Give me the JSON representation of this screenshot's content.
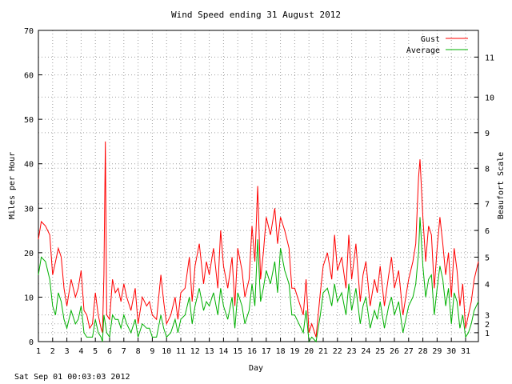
{
  "chart_data": {
    "type": "line",
    "title": "Wind Speed ending 31 August 2012",
    "xlabel": "Day",
    "ylabel": "Miles per Hour",
    "y2label": "Beaufort Scale",
    "xlim": [
      1,
      31.9
    ],
    "ylim": [
      0,
      70
    ],
    "x_ticks": [
      "1",
      "2",
      "3",
      "4",
      "5",
      "6",
      "7",
      "8",
      "9",
      "10",
      "11",
      "12",
      "13",
      "14",
      "15",
      "16",
      "17",
      "18",
      "19",
      "20",
      "21",
      "22",
      "23",
      "24",
      "25",
      "26",
      "27",
      "28",
      "29",
      "30",
      "31"
    ],
    "y_ticks": [
      "0",
      "10",
      "20",
      "30",
      "40",
      "50",
      "60",
      "70"
    ],
    "y2_ticks": [
      {
        "label": "1",
        "mph": 2
      },
      {
        "label": "2",
        "mph": 4
      },
      {
        "label": "3",
        "mph": 6
      },
      {
        "label": "4",
        "mph": 13
      },
      {
        "label": "5",
        "mph": 19
      },
      {
        "label": "6",
        "mph": 25
      },
      {
        "label": "7",
        "mph": 31
      },
      {
        "label": "8",
        "mph": 39
      },
      {
        "label": "9",
        "mph": 47
      },
      {
        "label": "10",
        "mph": 55
      },
      {
        "label": "11",
        "mph": 64
      }
    ],
    "grid": true,
    "legend_position": "top-right",
    "series": [
      {
        "name": "Gust",
        "color": "#ff0000",
        "x": [
          1,
          1.2,
          1.5,
          1.8,
          2,
          2.2,
          2.4,
          2.6,
          2.8,
          3,
          3.3,
          3.6,
          3.8,
          4,
          4.2,
          4.4,
          4.6,
          4.8,
          5,
          5.2,
          5.4,
          5.5,
          5.6,
          5.7,
          5.8,
          6,
          6.2,
          6.4,
          6.6,
          6.8,
          7,
          7.2,
          7.5,
          7.8,
          8,
          8.3,
          8.6,
          8.8,
          9,
          9.3,
          9.6,
          9.8,
          10,
          10.3,
          10.6,
          10.8,
          11,
          11.3,
          11.6,
          11.8,
          12,
          12.3,
          12.6,
          12.8,
          13,
          13.3,
          13.6,
          13.8,
          14,
          14.3,
          14.6,
          14.8,
          15,
          15.3,
          15.5,
          15.8,
          16,
          16.2,
          16.4,
          16.6,
          16.8,
          17,
          17.3,
          17.6,
          17.8,
          18,
          18.3,
          18.6,
          18.8,
          19,
          19.3,
          19.6,
          19.8,
          20,
          20.2,
          20.5,
          20.8,
          21,
          21.3,
          21.6,
          21.8,
          22,
          22.3,
          22.6,
          22.8,
          23,
          23.3,
          23.6,
          23.8,
          24,
          24.3,
          24.6,
          24.8,
          25,
          25.3,
          25.6,
          25.8,
          26,
          26.3,
          26.6,
          26.8,
          27,
          27.3,
          27.5,
          27.7,
          27.8,
          28,
          28.2,
          28.4,
          28.6,
          28.8,
          29,
          29.2,
          29.4,
          29.6,
          29.8,
          30,
          30.2,
          30.4,
          30.6,
          30.8,
          31,
          31.2,
          31.4,
          31.6,
          31.9
        ],
        "values": [
          23,
          27,
          26,
          24,
          15,
          18,
          21,
          19,
          12,
          8,
          14,
          10,
          12,
          16,
          7,
          6,
          3,
          4,
          11,
          6,
          3,
          2,
          15,
          45,
          6,
          5,
          14,
          11,
          12,
          9,
          13,
          10,
          7,
          12,
          4,
          10,
          8,
          9,
          6,
          5,
          15,
          9,
          4,
          6,
          10,
          5,
          11,
          12,
          19,
          9,
          17,
          22,
          13,
          18,
          15,
          21,
          12,
          25,
          17,
          12,
          19,
          8,
          21,
          16,
          10,
          14,
          26,
          18,
          35,
          14,
          20,
          28,
          24,
          30,
          22,
          28,
          25,
          21,
          12,
          12,
          9,
          6,
          14,
          2,
          4,
          1,
          11,
          17,
          20,
          14,
          24,
          16,
          19,
          12,
          24,
          14,
          22,
          9,
          15,
          18,
          8,
          14,
          11,
          17,
          8,
          15,
          19,
          12,
          16,
          6,
          10,
          14,
          18,
          22,
          37,
          41,
          28,
          18,
          26,
          24,
          12,
          21,
          28,
          22,
          15,
          20,
          10,
          21,
          16,
          8,
          13,
          3,
          6,
          9,
          14,
          18
        ]
      },
      {
        "name": "Average",
        "color": "#00b000",
        "x": [
          1,
          1.2,
          1.5,
          1.8,
          2,
          2.2,
          2.4,
          2.6,
          2.8,
          3,
          3.3,
          3.6,
          3.8,
          4,
          4.2,
          4.4,
          4.6,
          4.8,
          5,
          5.2,
          5.4,
          5.5,
          5.6,
          5.7,
          5.8,
          6,
          6.2,
          6.4,
          6.6,
          6.8,
          7,
          7.2,
          7.5,
          7.8,
          8,
          8.3,
          8.6,
          8.8,
          9,
          9.3,
          9.6,
          9.8,
          10,
          10.3,
          10.6,
          10.8,
          11,
          11.3,
          11.6,
          11.8,
          12,
          12.3,
          12.6,
          12.8,
          13,
          13.3,
          13.6,
          13.8,
          14,
          14.3,
          14.6,
          14.8,
          15,
          15.3,
          15.5,
          15.8,
          16,
          16.2,
          16.4,
          16.6,
          16.8,
          17,
          17.3,
          17.6,
          17.8,
          18,
          18.3,
          18.6,
          18.8,
          19,
          19.3,
          19.6,
          19.8,
          20,
          20.2,
          20.5,
          20.8,
          21,
          21.3,
          21.6,
          21.8,
          22,
          22.3,
          22.6,
          22.8,
          23,
          23.3,
          23.6,
          23.8,
          24,
          24.3,
          24.6,
          24.8,
          25,
          25.3,
          25.6,
          25.8,
          26,
          26.3,
          26.6,
          26.8,
          27,
          27.3,
          27.5,
          27.7,
          27.8,
          28,
          28.2,
          28.4,
          28.6,
          28.8,
          29,
          29.2,
          29.4,
          29.6,
          29.8,
          30,
          30.2,
          30.4,
          30.6,
          30.8,
          31,
          31.2,
          31.4,
          31.6,
          31.9
        ],
        "values": [
          15,
          19,
          18,
          14,
          8,
          6,
          11,
          9,
          5,
          3,
          7,
          4,
          5,
          8,
          2,
          1,
          1,
          1,
          5,
          2,
          1,
          0,
          6,
          4,
          2,
          1,
          6,
          5,
          5,
          3,
          6,
          4,
          2,
          5,
          1,
          4,
          3,
          3,
          1,
          1,
          6,
          3,
          1,
          2,
          5,
          2,
          5,
          6,
          10,
          4,
          8,
          12,
          7,
          9,
          8,
          11,
          6,
          12,
          8,
          5,
          10,
          3,
          11,
          8,
          4,
          7,
          13,
          8,
          23,
          9,
          12,
          16,
          13,
          18,
          11,
          21,
          16,
          13,
          6,
          6,
          4,
          2,
          7,
          0,
          1,
          0,
          6,
          11,
          12,
          8,
          13,
          9,
          11,
          6,
          13,
          7,
          12,
          4,
          8,
          10,
          3,
          7,
          5,
          9,
          3,
          8,
          10,
          6,
          9,
          2,
          5,
          8,
          10,
          13,
          20,
          28,
          17,
          10,
          14,
          15,
          6,
          12,
          17,
          14,
          8,
          12,
          4,
          11,
          9,
          3,
          6,
          1,
          2,
          4,
          7,
          9
        ]
      }
    ]
  },
  "footer": {
    "timestamp": "Sat Sep 01 00:03:03 2012"
  }
}
